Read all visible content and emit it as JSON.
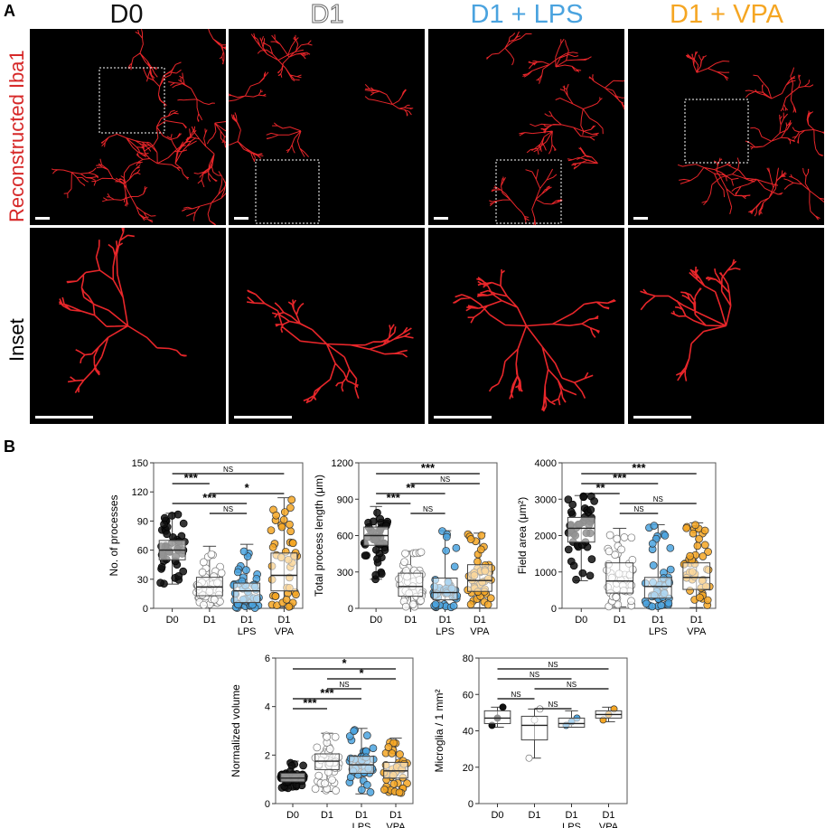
{
  "panel_a": {
    "letter": "A",
    "columns": [
      {
        "label": "D0",
        "color": "#111111"
      },
      {
        "label": "D1",
        "color": "#ffffff",
        "stroke": "#555555"
      },
      {
        "label": "D1 + LPS",
        "color": "#4aa3df"
      },
      {
        "label": "D1 + VPA",
        "color": "#f5a623"
      }
    ],
    "row_labels": [
      {
        "label": "Reconstructed Iba1",
        "color": "#d62828"
      },
      {
        "label": "Inset",
        "color": "#000000"
      }
    ]
  },
  "panel_b": {
    "letter": "B",
    "sig_labels": {
      "ns": "NS",
      "one": "*",
      "two": "**",
      "three": "***"
    }
  },
  "chart_data": [
    {
      "type": "box",
      "ylabel": "No. of processes",
      "ylim": [
        0,
        150
      ],
      "yticks": [
        "0",
        "30",
        "60",
        "90",
        "120",
        "150"
      ],
      "categories": [
        "D0",
        "D1",
        "D1",
        "D1"
      ],
      "category_sublabels": [
        "",
        "",
        "LPS",
        "VPA"
      ],
      "series": [
        {
          "name": "D0",
          "median": 60,
          "q1": 50,
          "q3": 70,
          "whisker_low": 25,
          "whisker_high": 98,
          "color": "#111111"
        },
        {
          "name": "D1",
          "median": 22,
          "q1": 13,
          "q3": 32,
          "whisker_low": 3,
          "whisker_high": 64,
          "color": "#ffffff"
        },
        {
          "name": "D1 LPS",
          "median": 18,
          "q1": 6,
          "q3": 26,
          "whisker_low": 0,
          "whisker_high": 66,
          "color": "#4aa3df"
        },
        {
          "name": "D1 VPA",
          "median": 34,
          "q1": 18,
          "q3": 57,
          "whisker_low": 1,
          "whisker_high": 114,
          "color": "#f5a623"
        }
      ],
      "brackets": [
        {
          "from": 0,
          "to": 3,
          "label": "NS"
        },
        {
          "from": 0,
          "to": 1,
          "label": "***"
        },
        {
          "from": 1,
          "to": 3,
          "label": "*"
        },
        {
          "from": 0,
          "to": 2,
          "label": "***"
        },
        {
          "from": 1,
          "to": 2,
          "label": "NS"
        }
      ]
    },
    {
      "type": "box",
      "ylabel": "Total process length (μm)",
      "ylim": [
        0,
        1200
      ],
      "yticks": [
        "0",
        "300",
        "600",
        "900",
        "1200"
      ],
      "categories": [
        "D0",
        "D1",
        "D1",
        "D1"
      ],
      "category_sublabels": [
        "",
        "",
        "LPS",
        "VPA"
      ],
      "series": [
        {
          "name": "D0",
          "median": 600,
          "q1": 520,
          "q3": 670,
          "whisker_low": 240,
          "whisker_high": 840,
          "color": "#111111"
        },
        {
          "name": "D1",
          "median": 180,
          "q1": 100,
          "q3": 290,
          "whisker_low": 10,
          "whisker_high": 470,
          "color": "#ffffff"
        },
        {
          "name": "D1 LPS",
          "median": 130,
          "q1": 70,
          "q3": 250,
          "whisker_low": 5,
          "whisker_high": 640,
          "color": "#4aa3df"
        },
        {
          "name": "D1 VPA",
          "median": 230,
          "q1": 140,
          "q3": 360,
          "whisker_low": 5,
          "whisker_high": 620,
          "color": "#f5a623"
        }
      ],
      "brackets": [
        {
          "from": 0,
          "to": 3,
          "label": "***"
        },
        {
          "from": 1,
          "to": 3,
          "label": "NS"
        },
        {
          "from": 0,
          "to": 2,
          "label": "**"
        },
        {
          "from": 0,
          "to": 1,
          "label": "***"
        },
        {
          "from": 1,
          "to": 2,
          "label": "NS"
        }
      ]
    },
    {
      "type": "box",
      "ylabel": "Field area (μm²)",
      "ylim": [
        0,
        4000
      ],
      "yticks": [
        "0",
        "1000",
        "2000",
        "3000",
        "4000"
      ],
      "categories": [
        "D0",
        "D1",
        "D1",
        "D1"
      ],
      "category_sublabels": [
        "",
        "",
        "LPS",
        "VPA"
      ],
      "series": [
        {
          "name": "D0",
          "median": 2200,
          "q1": 1820,
          "q3": 2500,
          "whisker_low": 760,
          "whisker_high": 3100,
          "color": "#111111"
        },
        {
          "name": "D1",
          "median": 750,
          "q1": 420,
          "q3": 1250,
          "whisker_low": 40,
          "whisker_high": 2200,
          "color": "#ffffff"
        },
        {
          "name": "D1 LPS",
          "median": 600,
          "q1": 280,
          "q3": 850,
          "whisker_low": 20,
          "whisker_high": 2300,
          "color": "#4aa3df"
        },
        {
          "name": "D1 VPA",
          "median": 850,
          "q1": 520,
          "q3": 1250,
          "whisker_low": 20,
          "whisker_high": 2350,
          "color": "#f5a623"
        }
      ],
      "brackets": [
        {
          "from": 0,
          "to": 3,
          "label": "***"
        },
        {
          "from": 0,
          "to": 2,
          "label": "***"
        },
        {
          "from": 0,
          "to": 1,
          "label": "**"
        },
        {
          "from": 1,
          "to": 3,
          "label": "NS"
        },
        {
          "from": 1,
          "to": 2,
          "label": "NS"
        }
      ]
    },
    {
      "type": "box",
      "ylabel": "Normalized volume",
      "ylim": [
        0,
        6
      ],
      "yticks": [
        "0",
        "2",
        "4",
        "6"
      ],
      "categories": [
        "D0",
        "D1",
        "D1",
        "D1"
      ],
      "category_sublabels": [
        "",
        "",
        "LPS",
        "VPA"
      ],
      "series": [
        {
          "name": "D0",
          "median": 1.05,
          "q1": 0.9,
          "q3": 1.25,
          "whisker_low": 0.6,
          "whisker_high": 1.75,
          "color": "#111111"
        },
        {
          "name": "D1",
          "median": 1.75,
          "q1": 1.4,
          "q3": 2.05,
          "whisker_low": 0.5,
          "whisker_high": 2.9,
          "color": "#ffffff"
        },
        {
          "name": "D1 LPS",
          "median": 1.6,
          "q1": 1.25,
          "q3": 1.95,
          "whisker_low": 0.4,
          "whisker_high": 3.1,
          "color": "#4aa3df"
        },
        {
          "name": "D1 VPA",
          "median": 1.35,
          "q1": 1.05,
          "q3": 1.7,
          "whisker_low": 0.4,
          "whisker_high": 2.7,
          "color": "#f5a623"
        }
      ],
      "brackets": [
        {
          "from": 0,
          "to": 3,
          "label": "*"
        },
        {
          "from": 1,
          "to": 3,
          "label": "*"
        },
        {
          "from": 1,
          "to": 2,
          "label": "NS"
        },
        {
          "from": 0,
          "to": 2,
          "label": "***"
        },
        {
          "from": 0,
          "to": 1,
          "label": "***"
        }
      ]
    },
    {
      "type": "box",
      "ylabel": "Microglia / 1 mm²",
      "ylim": [
        0,
        80
      ],
      "yticks": [
        "0",
        "20",
        "40",
        "60",
        "80"
      ],
      "categories": [
        "D0",
        "D1",
        "D1",
        "D1"
      ],
      "category_sublabels": [
        "",
        "",
        "LPS",
        "VPA"
      ],
      "series": [
        {
          "name": "D0",
          "median": 47,
          "q1": 44,
          "q3": 51,
          "whisker_low": 42,
          "whisker_high": 53,
          "points": [
            43,
            47,
            53
          ],
          "color": "#111111"
        },
        {
          "name": "D1",
          "median": 43,
          "q1": 35,
          "q3": 48,
          "whisker_low": 25,
          "whisker_high": 52,
          "points": [
            25,
            46,
            52
          ],
          "color": "#ffffff"
        },
        {
          "name": "D1 LPS",
          "median": 44,
          "q1": 42,
          "q3": 47,
          "whisker_low": 42,
          "whisker_high": 51,
          "points": [
            43,
            45,
            47
          ],
          "color": "#4aa3df"
        },
        {
          "name": "D1 VPA",
          "median": 49,
          "q1": 47,
          "q3": 51,
          "whisker_low": 45,
          "whisker_high": 53,
          "points": [
            46,
            49,
            52
          ],
          "color": "#f5a623"
        }
      ],
      "brackets": [
        {
          "from": 0,
          "to": 3,
          "label": "NS"
        },
        {
          "from": 0,
          "to": 2,
          "label": "NS"
        },
        {
          "from": 1,
          "to": 3,
          "label": "NS"
        },
        {
          "from": 0,
          "to": 1,
          "label": "NS"
        },
        {
          "from": 1,
          "to": 2,
          "label": "NS"
        }
      ]
    }
  ]
}
